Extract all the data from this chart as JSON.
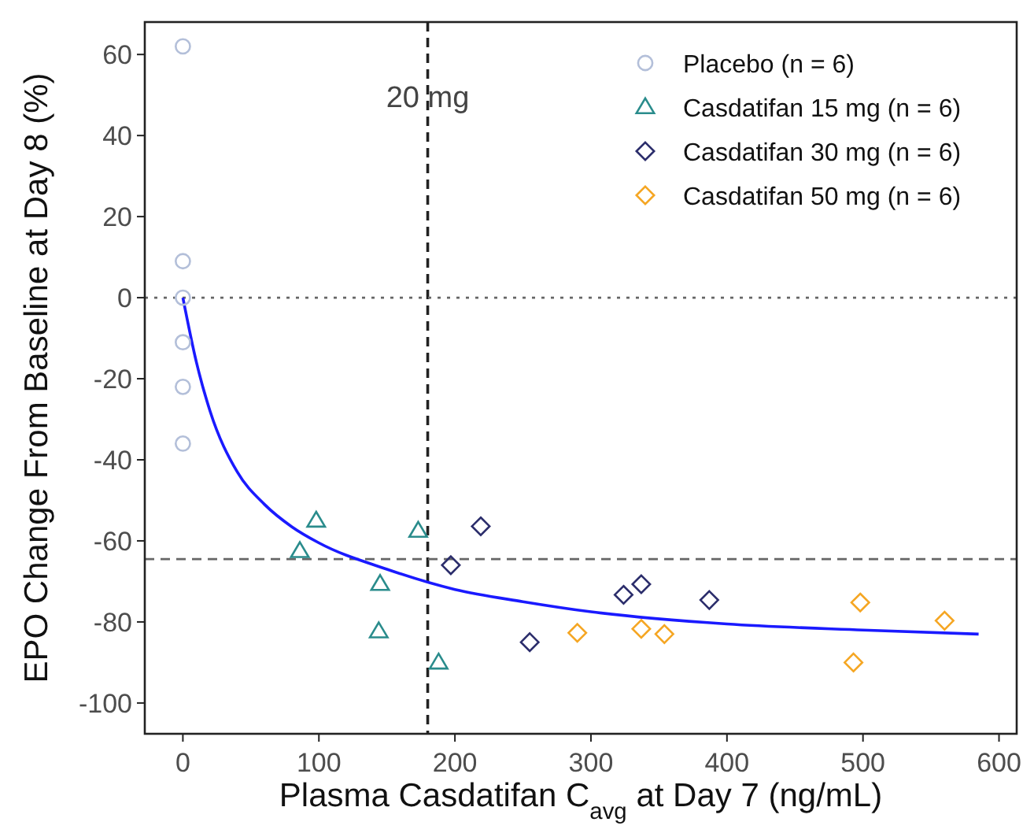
{
  "chart_data": {
    "type": "scatter",
    "xlabel": "Plasma Casdatifan C$_{avg}$ at Day 7 (ng/mL)",
    "ylabel": "EPO Change From Baseline at Day 8 (%)",
    "xlim": [
      -28,
      613
    ],
    "ylim": [
      -107.6,
      68
    ],
    "xticks": [
      0,
      100,
      200,
      300,
      400,
      500,
      600
    ],
    "yticks": [
      -100,
      -80,
      -60,
      -40,
      -20,
      0,
      20,
      40,
      60
    ],
    "grid": false,
    "legend": "top right",
    "series": [
      {
        "name": "Placebo (n = 6)",
        "color": "#b3bfd9",
        "marker": "circle",
        "x": [
          0,
          0,
          0,
          0,
          0,
          0
        ],
        "values": [
          62,
          9,
          0,
          -11,
          -22,
          -36
        ]
      },
      {
        "name": "Casdatifan 15 mg (n = 6)",
        "color": "#2a8c8c",
        "marker": "triangle",
        "x": [
          86,
          98,
          145,
          144,
          173,
          188
        ],
        "values": [
          -62.5,
          -55,
          -70.6,
          -82.3,
          -57.5,
          -90
        ]
      },
      {
        "name": "Casdatifan 30 mg (n = 6)",
        "color": "#2b2d6b",
        "marker": "diamond",
        "x": [
          197,
          219,
          255,
          324,
          337,
          387
        ],
        "values": [
          -66,
          -56.4,
          -85,
          -73.3,
          -70.7,
          -74.6
        ]
      },
      {
        "name": "Casdatifan 50 mg (n = 6)",
        "color": "#f5a623",
        "marker": "diamond",
        "x": [
          290,
          337,
          354,
          498,
          493,
          560
        ],
        "values": [
          -82.7,
          -81.7,
          -83,
          -75.2,
          -90,
          -79.7
        ]
      },
      {
        "type": "line",
        "color": "#1a1aff",
        "x": [
          0,
          10,
          20,
          40,
          60,
          80,
          100,
          150,
          200,
          250,
          300,
          400,
          500,
          585
        ],
        "values": [
          0,
          -16,
          -28,
          -43,
          -51,
          -56.5,
          -60.5,
          -67,
          -72,
          -75,
          -77.5,
          -80.5,
          -82,
          -83
        ]
      }
    ],
    "ref_lines": [
      {
        "axis": "x",
        "value": 180,
        "label": "20 mg",
        "color": "#222222",
        "line_style": "dashed"
      },
      {
        "axis": "y",
        "value": 0,
        "color": "#666666",
        "line_style": "dotted"
      },
      {
        "axis": "y",
        "value": -64.5,
        "color": "#666666",
        "line_style": "dashed"
      }
    ]
  }
}
